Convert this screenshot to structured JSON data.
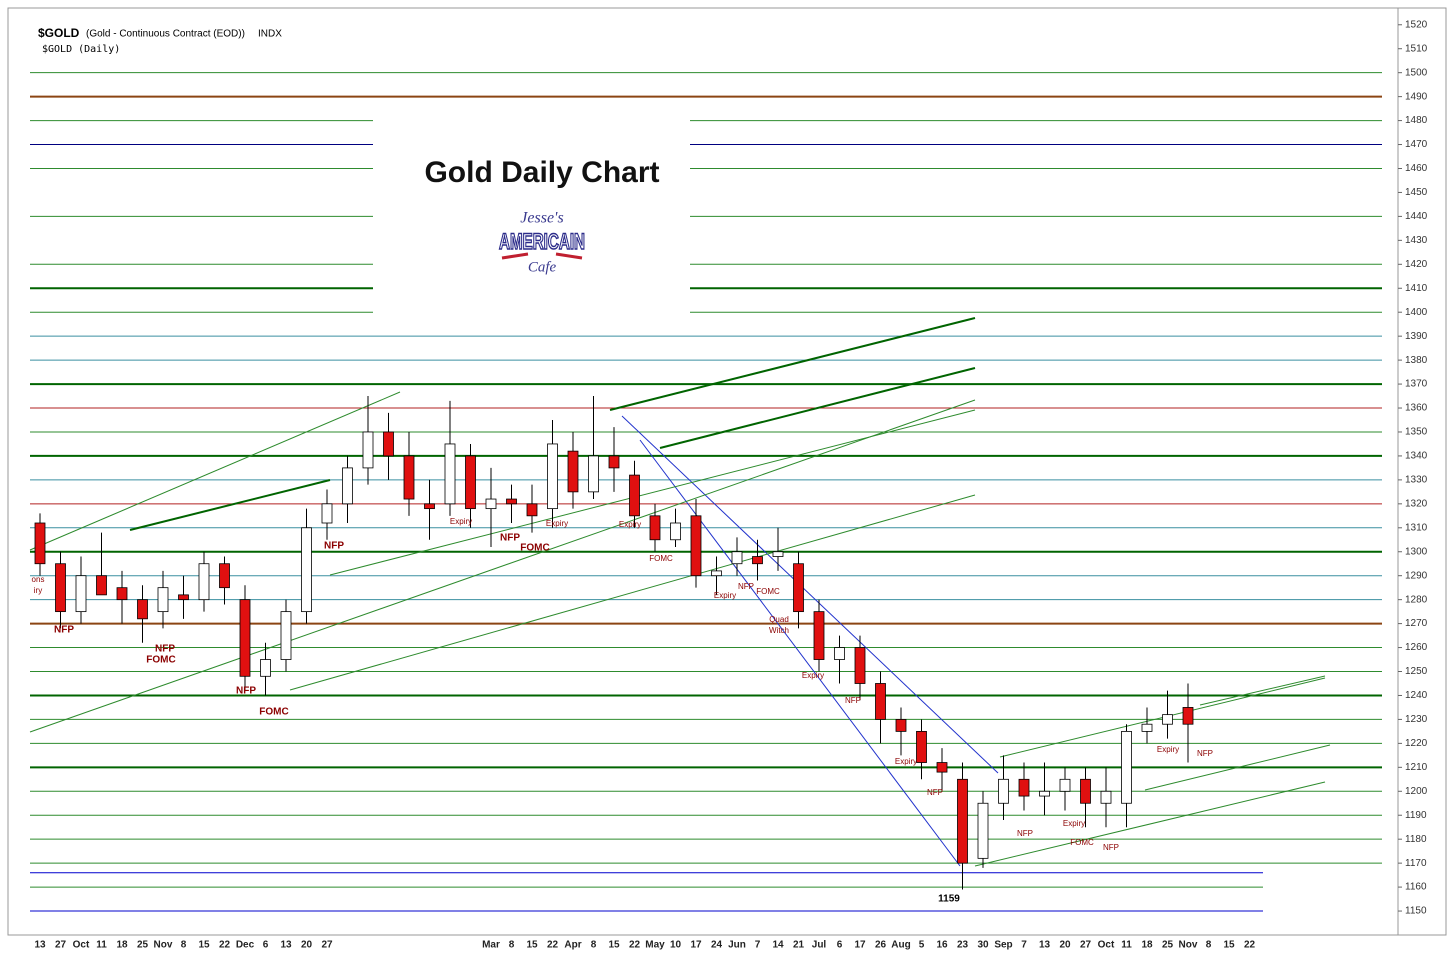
{
  "chart_data": {
    "type": "candlestick",
    "symbol": "$GOLD",
    "description": "(Gold - Continuous Contract (EOD))",
    "exchange": "INDX",
    "subtitle": "$GOLD (Daily)",
    "title": "Gold Daily Chart",
    "logo": [
      "Jesse's",
      "AMERICAIN",
      "Cafe"
    ],
    "categories": [
      "13",
      "27",
      "Oct",
      "11",
      "18",
      "25",
      "Nov",
      "8",
      "15",
      "22",
      "Dec",
      "6",
      "13",
      "20",
      "27",
      null,
      null,
      null,
      null,
      null,
      null,
      null,
      "Mar",
      "8",
      "15",
      "22",
      "Apr",
      "8",
      "15",
      "22",
      "May",
      "10",
      "17",
      "24",
      "Jun",
      "7",
      "14",
      "21",
      "Jul",
      "6",
      "17",
      "26",
      "Aug",
      "5",
      "16",
      "23",
      "30",
      "Sep",
      "7",
      "13",
      "20",
      "27",
      "Oct",
      "11",
      "18",
      "25",
      "Nov",
      "8",
      "15",
      "22",
      null,
      null,
      null,
      null,
      null,
      null
    ],
    "open": [
      1312,
      1295,
      1275,
      1290,
      1285,
      1280,
      1275,
      1282,
      1280,
      1295,
      1280,
      1248,
      1255,
      1275,
      1312,
      1320,
      1335,
      1350,
      1340,
      1320,
      1320,
      1340,
      1318,
      1322,
      1320,
      1318,
      1342,
      1325,
      1340,
      1332,
      1315,
      1305,
      1315,
      1290,
      1295,
      1298,
      1298,
      1295,
      1275,
      1255,
      1260,
      1245,
      1230,
      1225,
      1212,
      1205,
      1172,
      1195,
      1205,
      1198,
      1200,
      1205,
      1195,
      1195,
      1225,
      1228,
      1235,
      null,
      null,
      null,
      null,
      null,
      null,
      null,
      null,
      null
    ],
    "high": [
      1316,
      1300,
      1298,
      1308,
      1292,
      1286,
      1292,
      1290,
      1300,
      1298,
      1286,
      1262,
      1280,
      1318,
      1326,
      1340,
      1365,
      1358,
      1350,
      1330,
      1363,
      1345,
      1335,
      1328,
      1328,
      1355,
      1350,
      1365,
      1352,
      1338,
      1320,
      1318,
      1322,
      1298,
      1306,
      1305,
      1310,
      1300,
      1280,
      1265,
      1265,
      1250,
      1235,
      1230,
      1218,
      1212,
      1200,
      1215,
      1212,
      1212,
      1210,
      1210,
      1210,
      1228,
      1235,
      1242,
      1245,
      null,
      null,
      null,
      null,
      null,
      null,
      null,
      null,
      null
    ],
    "low": [
      1290,
      1268,
      1270,
      1283,
      1270,
      1262,
      1268,
      1272,
      1275,
      1278,
      1242,
      1240,
      1250,
      1270,
      1305,
      1312,
      1328,
      1330,
      1315,
      1305,
      1315,
      1310,
      1302,
      1312,
      1308,
      1310,
      1318,
      1322,
      1325,
      1310,
      1300,
      1302,
      1285,
      1282,
      1290,
      1288,
      1292,
      1268,
      1250,
      1245,
      1238,
      1220,
      1215,
      1205,
      1200,
      1159,
      1168,
      1188,
      1192,
      1190,
      1192,
      1185,
      1185,
      1185,
      1220,
      1222,
      1212,
      null,
      null,
      null,
      null,
      null,
      null,
      null,
      null,
      null
    ],
    "close": [
      1295,
      1275,
      1290,
      1282,
      1280,
      1272,
      1285,
      1280,
      1295,
      1285,
      1248,
      1255,
      1275,
      1310,
      1320,
      1335,
      1350,
      1340,
      1322,
      1318,
      1345,
      1318,
      1322,
      1320,
      1315,
      1345,
      1325,
      1340,
      1335,
      1315,
      1305,
      1312,
      1290,
      1292,
      1300,
      1295,
      1300,
      1275,
      1255,
      1260,
      1245,
      1230,
      1225,
      1212,
      1208,
      1170,
      1195,
      1205,
      1198,
      1200,
      1205,
      1195,
      1200,
      1225,
      1228,
      1232,
      1228,
      null,
      null,
      null,
      null,
      null,
      null,
      null,
      null,
      null
    ],
    "up_color": "#ffffff",
    "down_color": "#e01010",
    "ylim": [
      1140,
      1527
    ],
    "yticks": [
      1150,
      1160,
      1170,
      1180,
      1190,
      1200,
      1210,
      1220,
      1230,
      1240,
      1250,
      1260,
      1270,
      1280,
      1290,
      1300,
      1310,
      1320,
      1330,
      1340,
      1350,
      1360,
      1370,
      1380,
      1390,
      1400,
      1410,
      1420,
      1430,
      1440,
      1450,
      1460,
      1470,
      1480,
      1490,
      1500,
      1510,
      1520
    ],
    "levels": [
      {
        "value": 1500,
        "color": "#2e8b2e"
      },
      {
        "value": 1490,
        "color": "#8b4513"
      },
      {
        "value": 1480,
        "color": "#2e8b2e"
      },
      {
        "value": 1470,
        "color": "#000080"
      },
      {
        "value": 1460,
        "color": "#2e8b2e"
      },
      {
        "value": 1440,
        "color": "#2e8b2e"
      },
      {
        "value": 1420,
        "color": "#2e8b2e"
      },
      {
        "value": 1410,
        "color": "#006400"
      },
      {
        "value": 1400,
        "color": "#2e8b2e"
      },
      {
        "value": 1390,
        "color": "#3a8fa0"
      },
      {
        "value": 1380,
        "color": "#3a8fa0"
      },
      {
        "value": 1370,
        "color": "#006400"
      },
      {
        "value": 1360,
        "color": "#b22222"
      },
      {
        "value": 1350,
        "color": "#2e8b2e"
      },
      {
        "value": 1340,
        "color": "#006400"
      },
      {
        "value": 1330,
        "color": "#3a8fa0"
      },
      {
        "value": 1320,
        "color": "#b22222"
      },
      {
        "value": 1310,
        "color": "#3a8fa0"
      },
      {
        "value": 1300,
        "color": "#006400"
      },
      {
        "value": 1290,
        "color": "#3a8fa0"
      },
      {
        "value": 1280,
        "color": "#3a8fa0"
      },
      {
        "value": 1270,
        "color": "#8b4513"
      },
      {
        "value": 1260,
        "color": "#2e8b2e"
      },
      {
        "value": 1250,
        "color": "#2e8b2e"
      },
      {
        "value": 1240,
        "color": "#006400"
      },
      {
        "value": 1230,
        "color": "#2e8b2e"
      },
      {
        "value": 1220,
        "color": "#2e8b2e"
      },
      {
        "value": 1210,
        "color": "#006400"
      },
      {
        "value": 1200,
        "color": "#2e8b2e"
      },
      {
        "value": 1190,
        "color": "#2e8b2e"
      },
      {
        "value": 1180,
        "color": "#2e8b2e"
      },
      {
        "value": 1170,
        "color": "#2e8b2e"
      },
      {
        "value": 1166,
        "color": "#0000cd"
      },
      {
        "value": 1160,
        "color": "#2e8b2e"
      },
      {
        "value": 1150,
        "color": "#0000cd"
      }
    ],
    "annotations": [
      "ons",
      "iry",
      "NFP",
      "NFP",
      "FOMC",
      "NFP",
      "FOMC",
      "NFP",
      "Expiry",
      "NFP",
      "FOMC",
      "Expiry",
      "Expiry",
      "FOMC",
      "NFP",
      "FOMC",
      "Expiry",
      "Quad",
      "Witch",
      "Expiry",
      "NFP",
      "Expiry",
      "NFP",
      "1159",
      "NFP",
      "Expiry",
      "FOMC",
      "NFP",
      "Expiry",
      "NFP"
    ]
  }
}
